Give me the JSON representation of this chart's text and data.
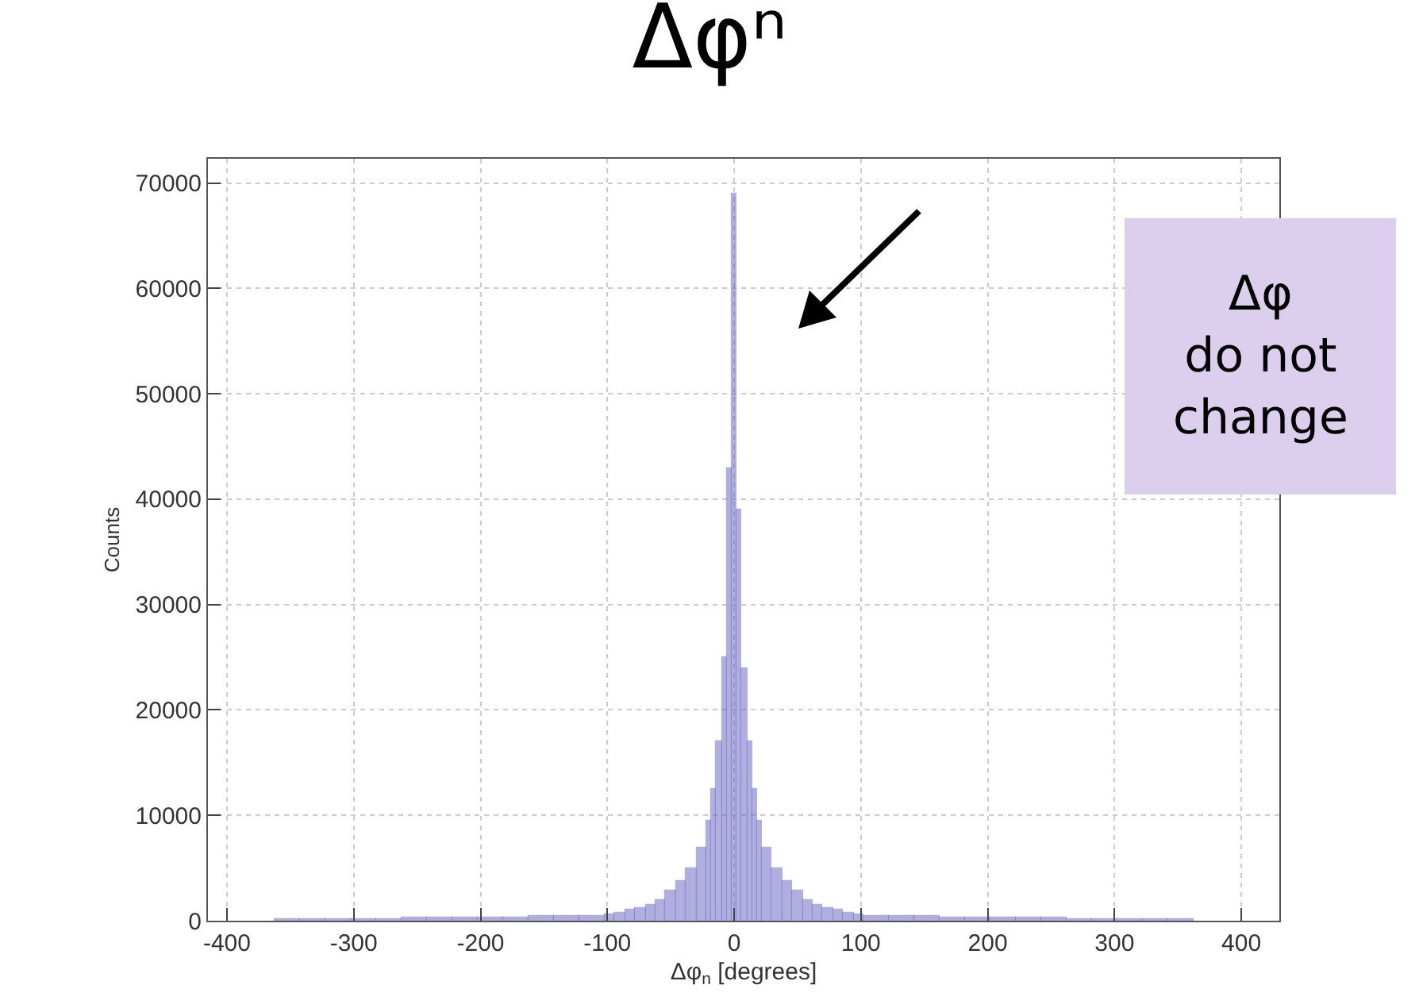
{
  "chart_data": {
    "type": "histogram",
    "title": "Δφⁿ",
    "xlabel": "Δφ$_{n}$ [degrees]",
    "ylabel": "Counts",
    "bins": [
      -362,
      -342,
      -322,
      -302,
      -282,
      -262,
      -242,
      -222,
      -202,
      -182,
      -162,
      -142,
      -122,
      -102,
      -94,
      -86,
      -78,
      -70,
      -62,
      -54,
      -46,
      -38,
      -30,
      -22,
      -18,
      -14,
      -10,
      -6,
      -2,
      2,
      6,
      10,
      14,
      18,
      22,
      30,
      38,
      46,
      54,
      62,
      70,
      78,
      86,
      94,
      102,
      122,
      142,
      162,
      182,
      202,
      222,
      242,
      262,
      282,
      302,
      322,
      342,
      362
    ],
    "values": [
      200,
      200,
      200,
      200,
      200,
      300,
      300,
      300,
      300,
      300,
      400,
      400,
      500,
      600,
      800,
      1000,
      1200,
      1500,
      2000,
      2800,
      3800,
      5000,
      7000,
      9500,
      12500,
      17000,
      25000,
      43000,
      69000,
      39000,
      24000,
      17000,
      12500,
      9500,
      7000,
      5000,
      3800,
      2800,
      2000,
      1500,
      1200,
      1000,
      800,
      600,
      500,
      400,
      400,
      300,
      300,
      300,
      300,
      300,
      200,
      200,
      200,
      200,
      200
    ],
    "color": "#6f6cc4",
    "xlim": [
      -415,
      430
    ],
    "ylim": [
      0,
      72300
    ],
    "xticks": [
      -400,
      -300,
      -200,
      -100,
      0,
      100,
      200,
      300,
      400
    ],
    "yticks": [
      0,
      10000,
      20000,
      30000,
      40000,
      50000,
      60000,
      70000
    ],
    "grid": true,
    "annotations": [
      "Δφ\ndo not\nchange"
    ]
  }
}
